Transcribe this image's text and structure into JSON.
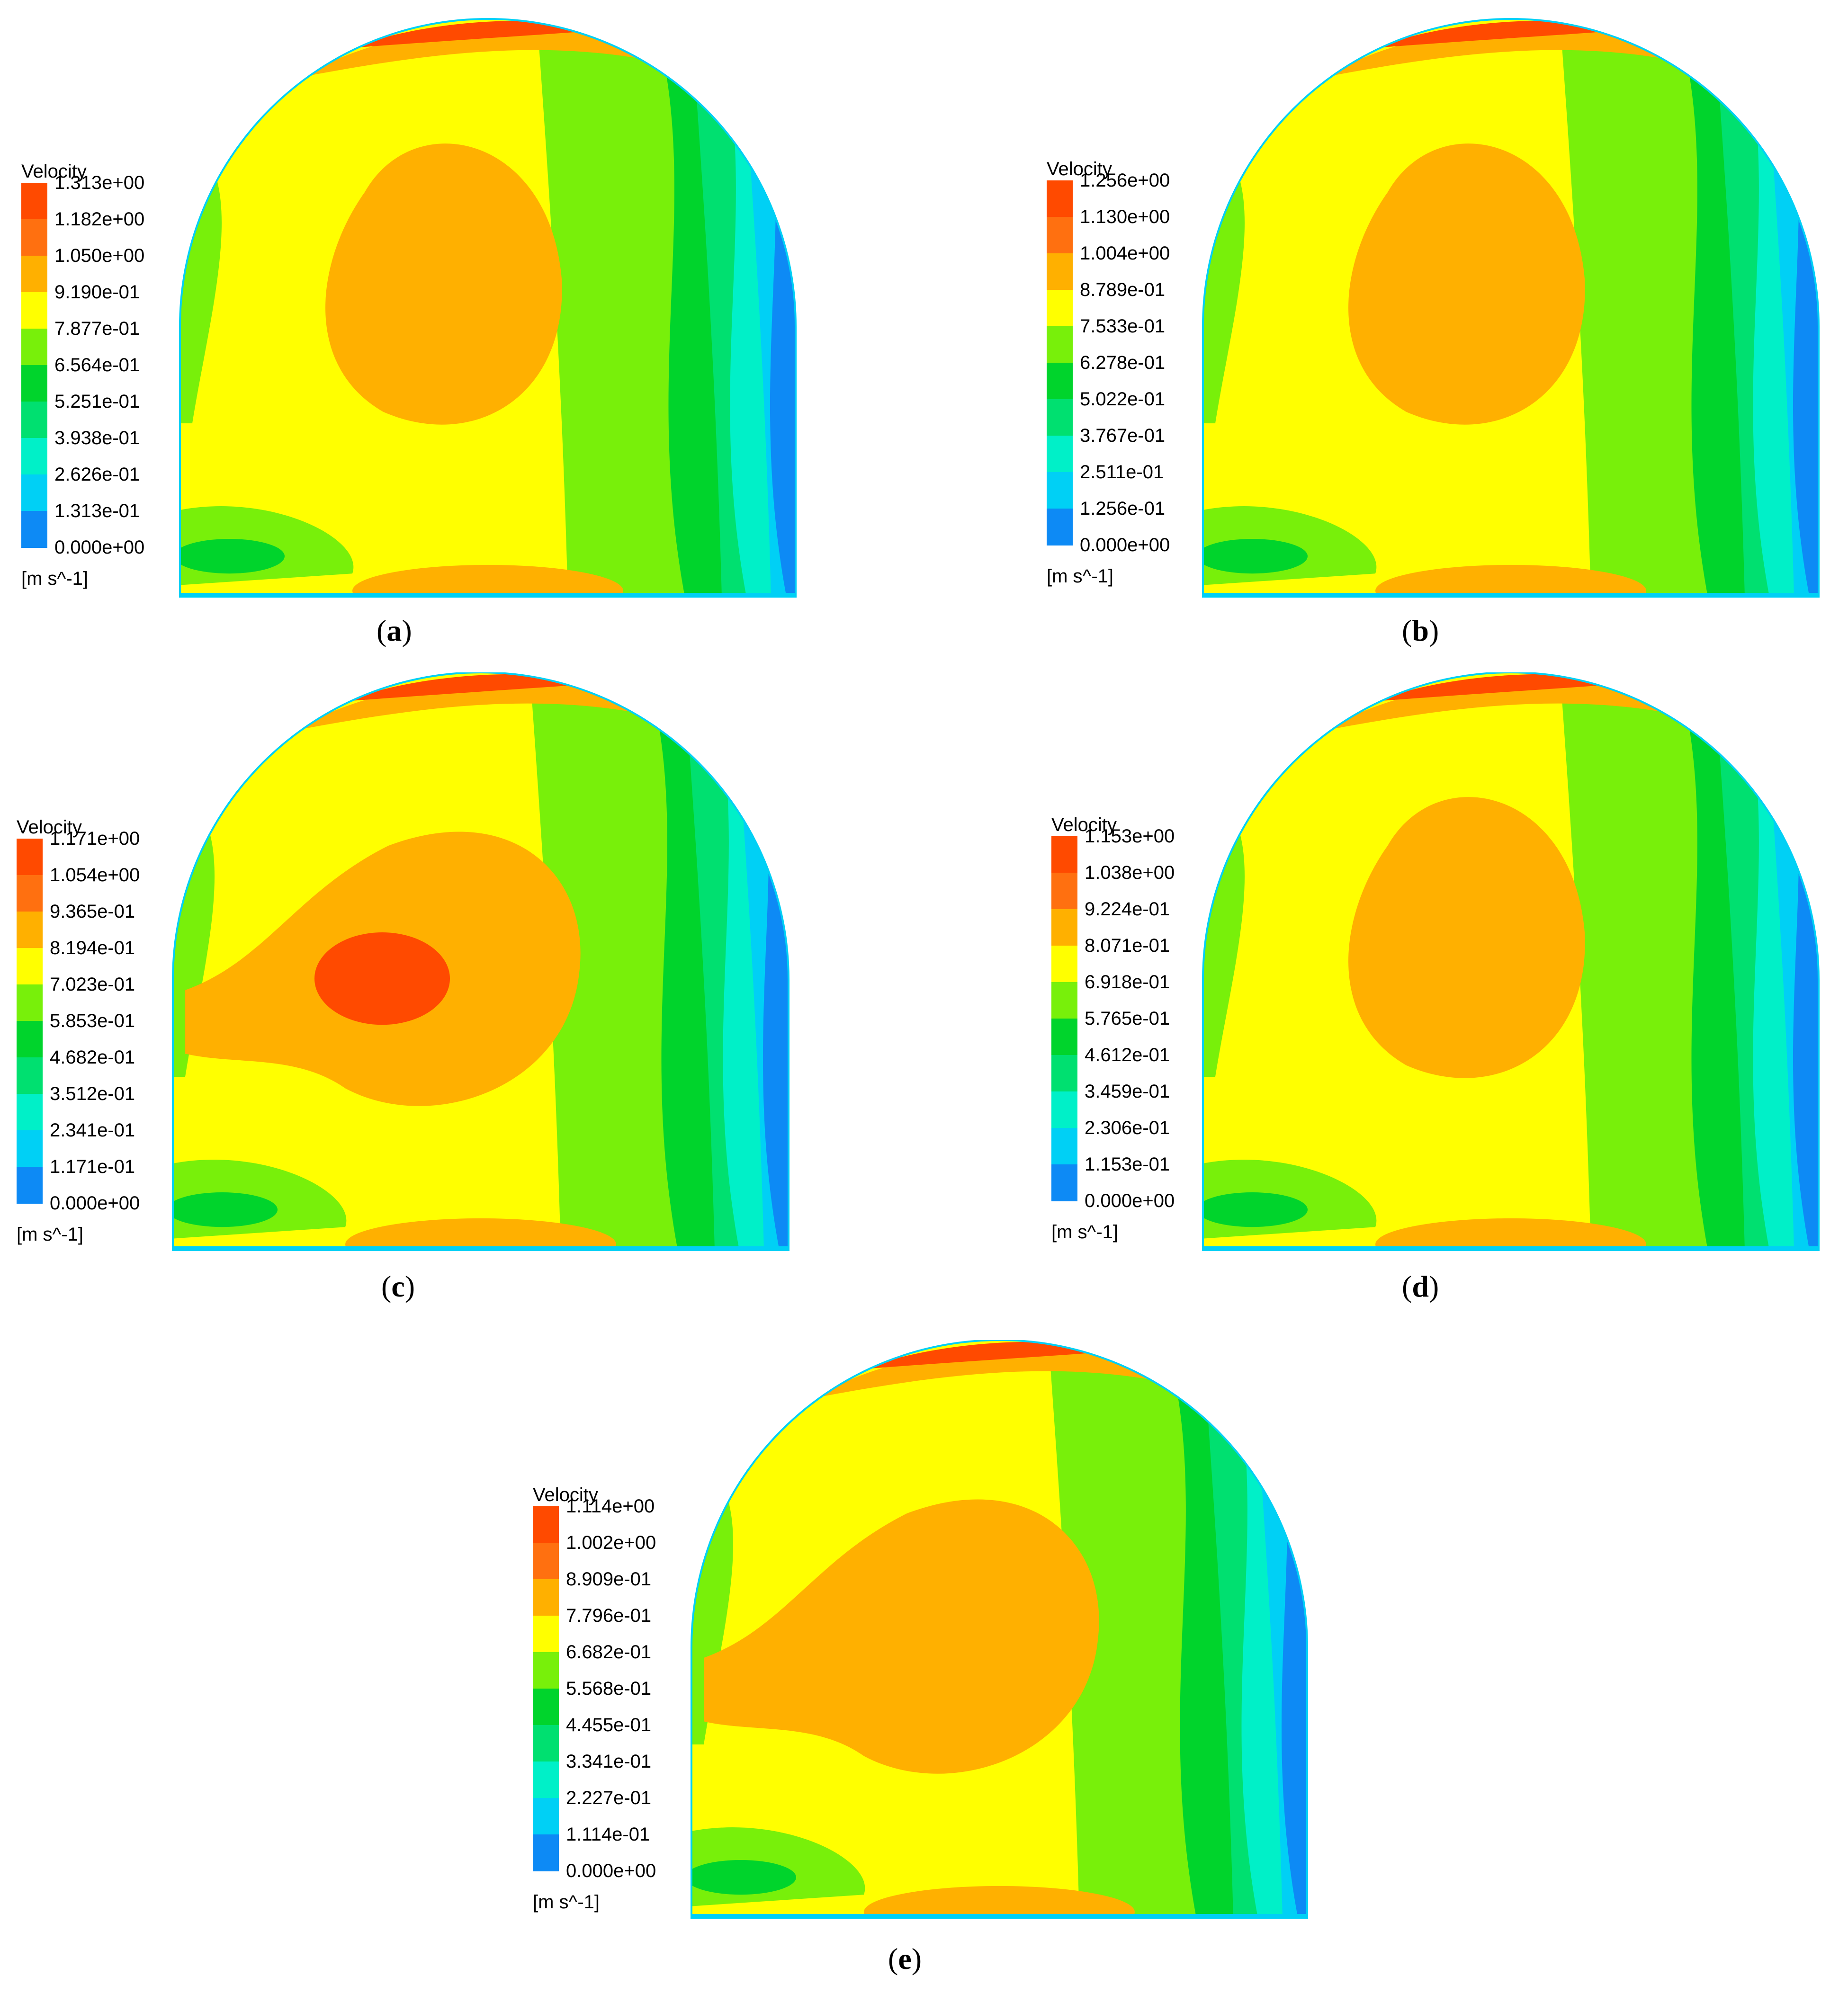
{
  "colors": [
    "#0b2cf5",
    "#0d8af5",
    "#00d0f5",
    "#00f0c8",
    "#00e070",
    "#00d42c",
    "#78f00a",
    "#ffff00",
    "#ffb000",
    "#ff7010",
    "#ff4a00"
  ],
  "panels": [
    {
      "id": "a",
      "caption": "a",
      "legend_title": "Velocity",
      "unit": "[m s^-1]",
      "ticks": [
        "1.313e+00",
        "1.182e+00",
        "1.050e+00",
        "9.190e-01",
        "7.877e-01",
        "6.564e-01",
        "5.251e-01",
        "3.938e-01",
        "2.626e-01",
        "1.313e-01",
        "0.000e+00"
      ]
    },
    {
      "id": "b",
      "caption": "b",
      "legend_title": "Velocity",
      "unit": "[m s^-1]",
      "ticks": [
        "1.256e+00",
        "1.130e+00",
        "1.004e+00",
        "8.789e-01",
        "7.533e-01",
        "6.278e-01",
        "5.022e-01",
        "3.767e-01",
        "2.511e-01",
        "1.256e-01",
        "0.000e+00"
      ]
    },
    {
      "id": "c",
      "caption": "c",
      "legend_title": "Velocity",
      "unit": "[m s^-1]",
      "ticks": [
        "1.171e+00",
        "1.054e+00",
        "9.365e-01",
        "8.194e-01",
        "7.023e-01",
        "5.853e-01",
        "4.682e-01",
        "3.512e-01",
        "2.341e-01",
        "1.171e-01",
        "0.000e+00"
      ]
    },
    {
      "id": "d",
      "caption": "d",
      "legend_title": "Velocity",
      "unit": "[m s^-1]",
      "ticks": [
        "1.153e+00",
        "1.038e+00",
        "9.224e-01",
        "8.071e-01",
        "6.918e-01",
        "5.765e-01",
        "4.612e-01",
        "3.459e-01",
        "2.306e-01",
        "1.153e-01",
        "0.000e+00"
      ]
    },
    {
      "id": "e",
      "caption": "e",
      "legend_title": "Velocity",
      "unit": "[m s^-1]",
      "ticks": [
        "1.114e+00",
        "1.002e+00",
        "8.909e-01",
        "7.796e-01",
        "6.682e-01",
        "5.568e-01",
        "4.455e-01",
        "3.341e-01",
        "2.227e-01",
        "1.114e-01",
        "0.000e+00"
      ]
    }
  ]
}
